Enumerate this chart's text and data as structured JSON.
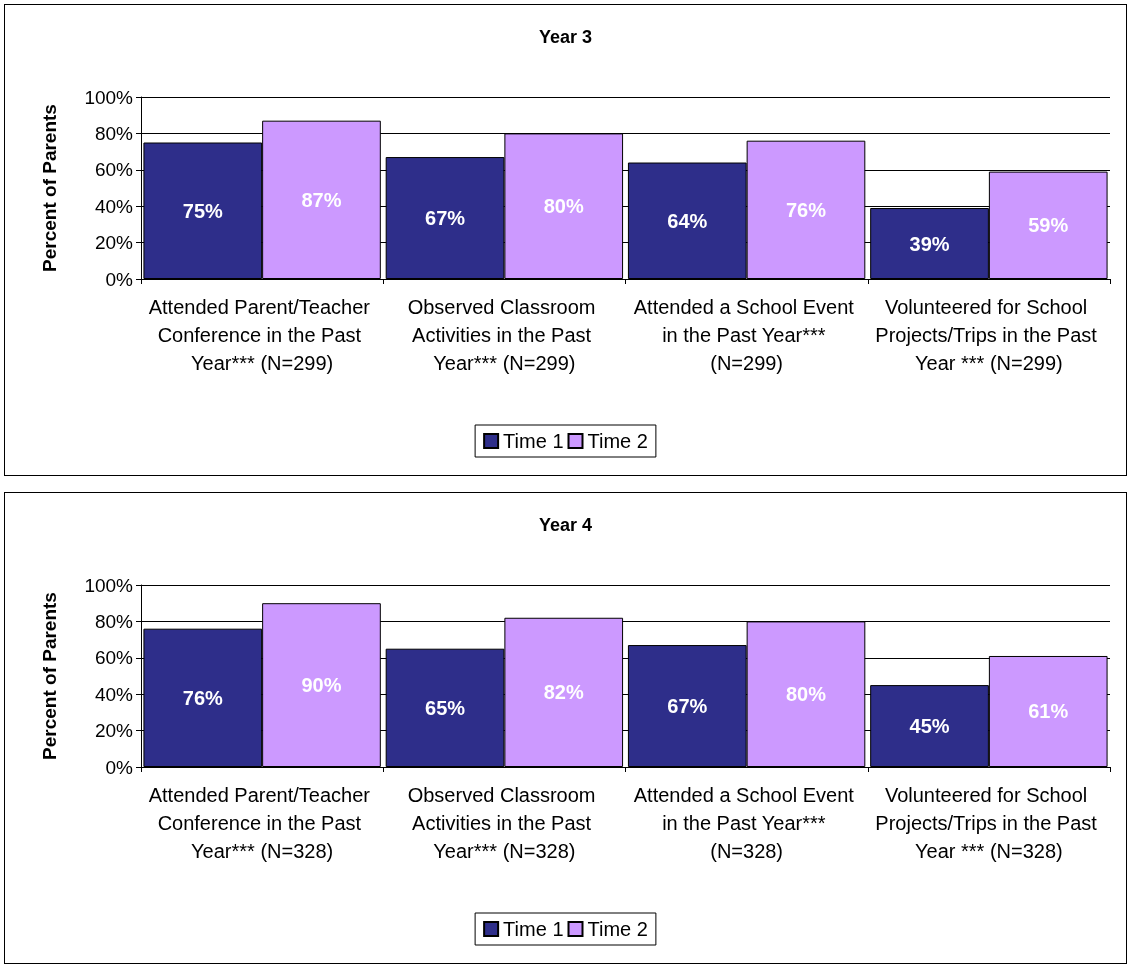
{
  "chart_data": [
    {
      "type": "bar",
      "title": "Year 3",
      "ylabel": "Percent of Parents",
      "categories": [
        "Attended Parent/Teacher Conference in the Past Year*** (N=299)",
        "Observed Classroom Activities in the Past Year*** (N=299)",
        "Attended a School Event in the Past Year*** (N=299)",
        "Volunteered for School Projects/Trips in the Past Year *** (N=299)"
      ],
      "series": [
        {
          "name": "Time 1",
          "color": "#2e2e8a",
          "values": [
            75,
            67,
            64,
            39
          ],
          "value_labels": [
            "75%",
            "67%",
            "64%",
            "39%"
          ]
        },
        {
          "name": "Time 2",
          "color": "#cc99ff",
          "values": [
            87,
            80,
            76,
            59
          ],
          "value_labels": [
            "87%",
            "80%",
            "76%",
            "59%"
          ]
        }
      ],
      "ylim": [
        0,
        100
      ],
      "yticks": [
        {
          "value": 0,
          "label": "0%"
        },
        {
          "value": 20,
          "label": "20%"
        },
        {
          "value": 40,
          "label": "40%"
        },
        {
          "value": 60,
          "label": "60%"
        },
        {
          "value": 80,
          "label": "80%"
        },
        {
          "value": 100,
          "label": "100%"
        }
      ],
      "grid": "y",
      "legend": "bottom"
    },
    {
      "type": "bar",
      "title": "Year 4",
      "ylabel": "Percent of Parents",
      "categories": [
        "Attended Parent/Teacher Conference in the Past Year*** (N=328)",
        "Observed Classroom Activities in the Past Year*** (N=328)",
        "Attended a School Event in the Past Year*** (N=328)",
        "Volunteered for School Projects/Trips in the Past Year *** (N=328)"
      ],
      "series": [
        {
          "name": "Time 1",
          "color": "#2e2e8a",
          "values": [
            76,
            65,
            67,
            45
          ],
          "value_labels": [
            "76%",
            "65%",
            "67%",
            "45%"
          ]
        },
        {
          "name": "Time 2",
          "color": "#cc99ff",
          "values": [
            90,
            82,
            80,
            61
          ],
          "value_labels": [
            "90%",
            "82%",
            "80%",
            "61%"
          ]
        }
      ],
      "ylim": [
        0,
        100
      ],
      "yticks": [
        {
          "value": 0,
          "label": "0%"
        },
        {
          "value": 20,
          "label": "20%"
        },
        {
          "value": 40,
          "label": "40%"
        },
        {
          "value": 60,
          "label": "60%"
        },
        {
          "value": 80,
          "label": "80%"
        },
        {
          "value": 100,
          "label": "100%"
        }
      ],
      "grid": "y",
      "legend": "bottom"
    }
  ]
}
